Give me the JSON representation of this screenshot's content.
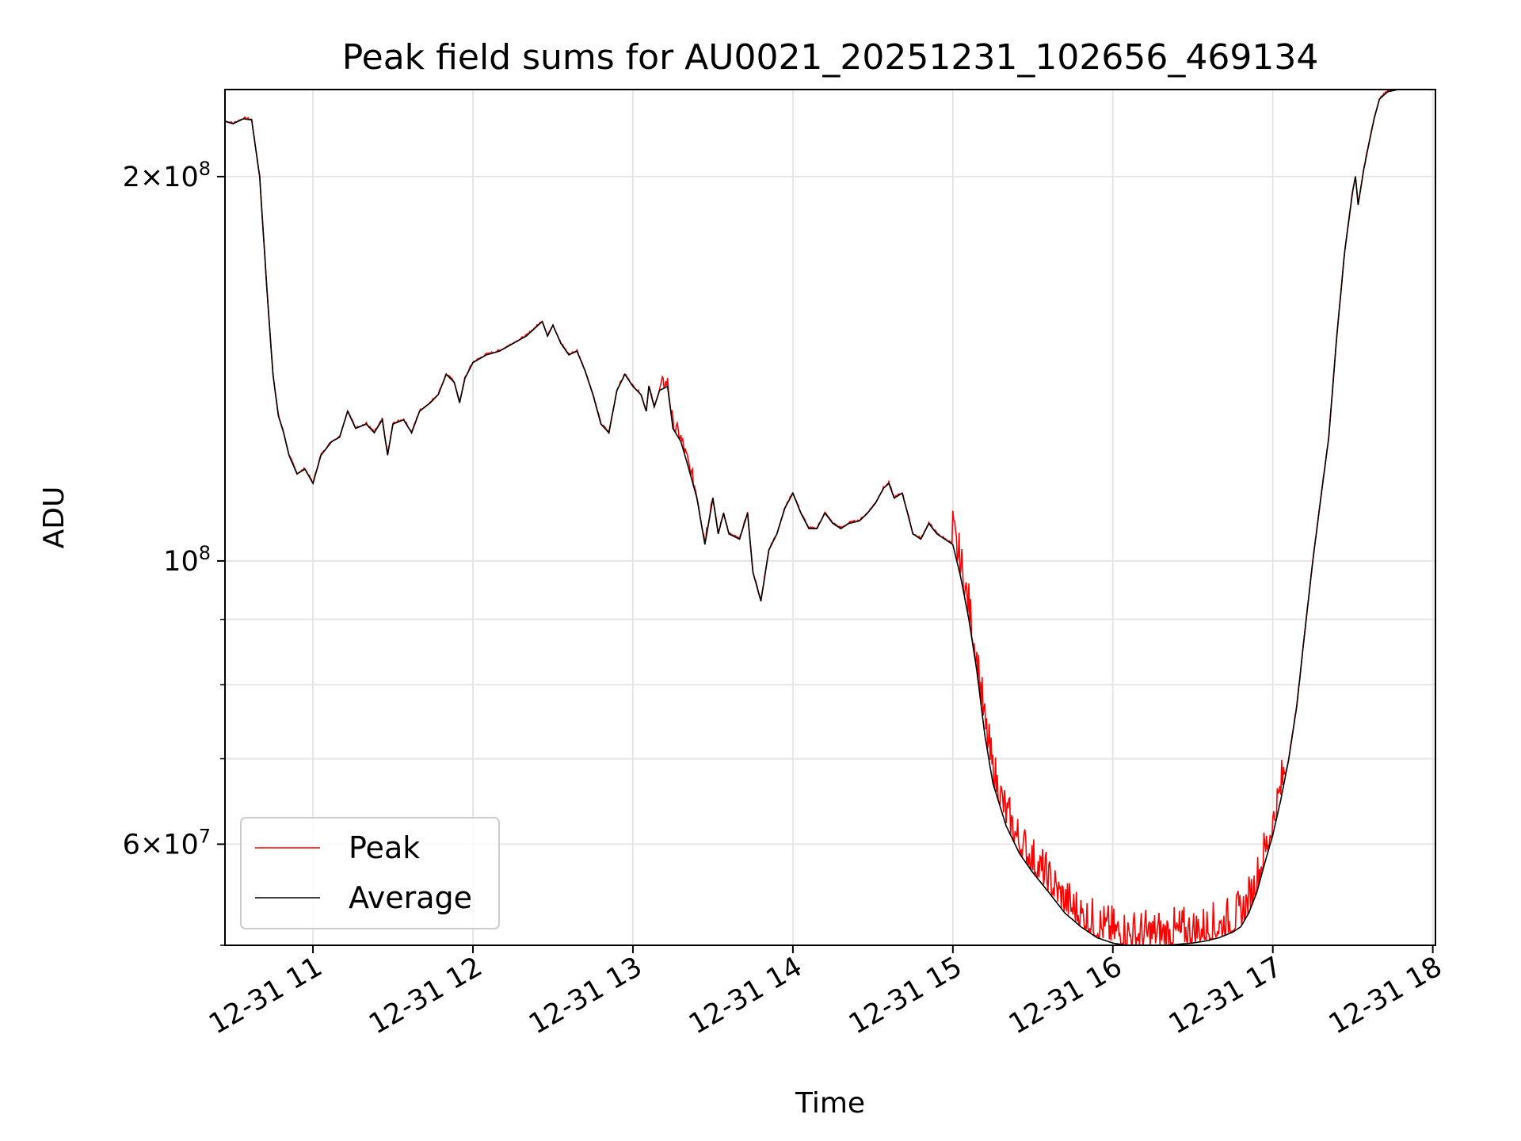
{
  "chart_data": {
    "type": "line",
    "title": "Peak field sums for AU0021_20251231_102656_469134",
    "xlabel": "Time",
    "ylabel": "ADU",
    "y_scale": "log",
    "ylim": [
      50000000,
      234000000
    ],
    "xlim": [
      "12-31 10:27",
      "12-31 18:01"
    ],
    "grid": true,
    "legend_position": "lower-left",
    "x_ticks": [
      {
        "value": "12-31 11:00",
        "label": "12-31 11"
      },
      {
        "value": "12-31 12:00",
        "label": "12-31 12"
      },
      {
        "value": "12-31 13:00",
        "label": "12-31 13"
      },
      {
        "value": "12-31 14:00",
        "label": "12-31 14"
      },
      {
        "value": "12-31 15:00",
        "label": "12-31 15"
      },
      {
        "value": "12-31 16:00",
        "label": "12-31 16"
      },
      {
        "value": "12-31 17:00",
        "label": "12-31 17"
      },
      {
        "value": "12-31 18:00",
        "label": "12-31 18"
      }
    ],
    "y_major_ticks": [
      {
        "value": 60000000,
        "mantissa": "6",
        "exponent": "7"
      },
      {
        "value": 100000000,
        "mantissa": "",
        "exponent": "8"
      },
      {
        "value": 200000000,
        "mantissa": "2",
        "exponent": "8"
      }
    ],
    "y_minor_ticks": [
      50000000,
      70000000,
      80000000,
      90000000
    ],
    "series": [
      {
        "name": "Peak",
        "color": "#ff0000"
      },
      {
        "name": "Average",
        "color": "#000000"
      }
    ],
    "average_points": [
      [
        "12-31 10:27",
        221000000
      ],
      [
        "12-31 10:30",
        220000000
      ],
      [
        "12-31 10:34",
        222000000
      ],
      [
        "12-31 10:37",
        221500000
      ],
      [
        "12-31 10:40",
        200000000
      ],
      [
        "12-31 10:43",
        160000000
      ],
      [
        "12-31 10:45",
        140000000
      ],
      [
        "12-31 10:47",
        130000000
      ],
      [
        "12-31 10:49",
        126000000
      ],
      [
        "12-31 10:51",
        121000000
      ],
      [
        "12-31 10:54",
        117000000
      ],
      [
        "12-31 10:57",
        118000000
      ],
      [
        "12-31 11:00",
        115000000
      ],
      [
        "12-31 11:03",
        121000000
      ],
      [
        "12-31 11:07",
        124000000
      ],
      [
        "12-31 11:10",
        125000000
      ],
      [
        "12-31 11:13",
        131000000
      ],
      [
        "12-31 11:16",
        127000000
      ],
      [
        "12-31 11:20",
        128000000
      ],
      [
        "12-31 11:23",
        126000000
      ],
      [
        "12-31 11:26",
        129000000
      ],
      [
        "12-31 11:28",
        121000000
      ],
      [
        "12-31 11:30",
        128000000
      ],
      [
        "12-31 11:34",
        129000000
      ],
      [
        "12-31 11:37",
        126000000
      ],
      [
        "12-31 11:40",
        131000000
      ],
      [
        "12-31 11:44",
        133000000
      ],
      [
        "12-31 11:47",
        135000000
      ],
      [
        "12-31 11:50",
        140000000
      ],
      [
        "12-31 11:53",
        138000000
      ],
      [
        "12-31 11:55",
        133000000
      ],
      [
        "12-31 11:57",
        139000000
      ],
      [
        "12-31 12:00",
        143000000
      ],
      [
        "12-31 12:05",
        145000000
      ],
      [
        "12-31 12:10",
        146000000
      ],
      [
        "12-31 12:15",
        148000000
      ],
      [
        "12-31 12:20",
        150000000
      ],
      [
        "12-31 12:23",
        152000000
      ],
      [
        "12-31 12:26",
        154000000
      ],
      [
        "12-31 12:28",
        150000000
      ],
      [
        "12-31 12:30",
        153000000
      ],
      [
        "12-31 12:33",
        148000000
      ],
      [
        "12-31 12:36",
        145000000
      ],
      [
        "12-31 12:39",
        146000000
      ],
      [
        "12-31 12:42",
        141000000
      ],
      [
        "12-31 12:45",
        135000000
      ],
      [
        "12-31 12:48",
        128000000
      ],
      [
        "12-31 12:51",
        126000000
      ],
      [
        "12-31 12:54",
        136000000
      ],
      [
        "12-31 12:57",
        140000000
      ],
      [
        "12-31 13:00",
        137000000
      ],
      [
        "12-31 13:03",
        135000000
      ],
      [
        "12-31 13:05",
        131000000
      ],
      [
        "12-31 13:06",
        137000000
      ],
      [
        "12-31 13:08",
        132000000
      ],
      [
        "12-31 13:10",
        136000000
      ],
      [
        "12-31 13:13",
        137000000
      ],
      [
        "12-31 13:15",
        127000000
      ],
      [
        "12-31 13:18",
        124000000
      ],
      [
        "12-31 13:21",
        118000000
      ],
      [
        "12-31 13:24",
        112000000
      ],
      [
        "12-31 13:27",
        103000000
      ],
      [
        "12-31 13:30",
        112000000
      ],
      [
        "12-31 13:32",
        105000000
      ],
      [
        "12-31 13:34",
        109000000
      ],
      [
        "12-31 13:36",
        105000000
      ],
      [
        "12-31 13:40",
        104000000
      ],
      [
        "12-31 13:43",
        109000000
      ],
      [
        "12-31 13:45",
        98000000
      ],
      [
        "12-31 13:48",
        93000000
      ],
      [
        "12-31 13:51",
        102000000
      ],
      [
        "12-31 13:54",
        105000000
      ],
      [
        "12-31 13:57",
        110000000
      ],
      [
        "12-31 14:00",
        113000000
      ],
      [
        "12-31 14:03",
        109000000
      ],
      [
        "12-31 14:06",
        106000000
      ],
      [
        "12-31 14:09",
        106000000
      ],
      [
        "12-31 14:12",
        109000000
      ],
      [
        "12-31 14:15",
        107000000
      ],
      [
        "12-31 14:18",
        106000000
      ],
      [
        "12-31 14:21",
        107000000
      ],
      [
        "12-31 14:25",
        107500000
      ],
      [
        "12-31 14:28",
        109000000
      ],
      [
        "12-31 14:31",
        111000000
      ],
      [
        "12-31 14:34",
        114000000
      ],
      [
        "12-31 14:36",
        115000000
      ],
      [
        "12-31 14:38",
        112000000
      ],
      [
        "12-31 14:41",
        113000000
      ],
      [
        "12-31 14:43",
        109000000
      ],
      [
        "12-31 14:45",
        105000000
      ],
      [
        "12-31 14:48",
        104000000
      ],
      [
        "12-31 14:51",
        107000000
      ],
      [
        "12-31 14:54",
        105000000
      ],
      [
        "12-31 14:57",
        104000000
      ],
      [
        "12-31 15:00",
        103000000
      ],
      [
        "12-31 15:03",
        97000000
      ],
      [
        "12-31 15:06",
        90000000
      ],
      [
        "12-31 15:09",
        82000000
      ],
      [
        "12-31 15:12",
        73000000
      ],
      [
        "12-31 15:15",
        67000000
      ],
      [
        "12-31 15:20",
        62000000
      ],
      [
        "12-31 15:25",
        59000000
      ],
      [
        "12-31 15:30",
        57000000
      ],
      [
        "12-31 15:36",
        55000000
      ],
      [
        "12-31 15:42",
        53000000
      ],
      [
        "12-31 15:48",
        51700000
      ],
      [
        "12-31 15:54",
        50700000
      ],
      [
        "12-31 16:00",
        50200000
      ],
      [
        "12-31 16:05",
        50000000
      ],
      [
        "12-31 16:10",
        49900000
      ],
      [
        "12-31 16:20",
        50000000
      ],
      [
        "12-31 16:30",
        50200000
      ],
      [
        "12-31 16:35",
        50400000
      ],
      [
        "12-31 16:40",
        50700000
      ],
      [
        "12-31 16:45",
        51200000
      ],
      [
        "12-31 16:48",
        51700000
      ],
      [
        "12-31 16:51",
        53000000
      ],
      [
        "12-31 16:54",
        55000000
      ],
      [
        "12-31 16:57",
        58000000
      ],
      [
        "12-31 17:00",
        61000000
      ],
      [
        "12-31 17:03",
        65000000
      ],
      [
        "12-31 17:06",
        70000000
      ],
      [
        "12-31 17:09",
        77000000
      ],
      [
        "12-31 17:12",
        88000000
      ],
      [
        "12-31 17:15",
        100000000
      ],
      [
        "12-31 17:18",
        112000000
      ],
      [
        "12-31 17:21",
        125000000
      ],
      [
        "12-31 17:24",
        150000000
      ],
      [
        "12-31 17:27",
        175000000
      ],
      [
        "12-31 17:30",
        195000000
      ],
      [
        "12-31 17:31",
        200000000
      ],
      [
        "12-31 17:32",
        190000000
      ],
      [
        "12-31 17:34",
        202000000
      ],
      [
        "12-31 17:36",
        212000000
      ],
      [
        "12-31 17:38",
        222000000
      ],
      [
        "12-31 17:40",
        230000000
      ],
      [
        "12-31 17:43",
        233000000
      ],
      [
        "12-31 17:47",
        234000000
      ],
      [
        "12-31 18:01",
        234000000
      ]
    ]
  }
}
